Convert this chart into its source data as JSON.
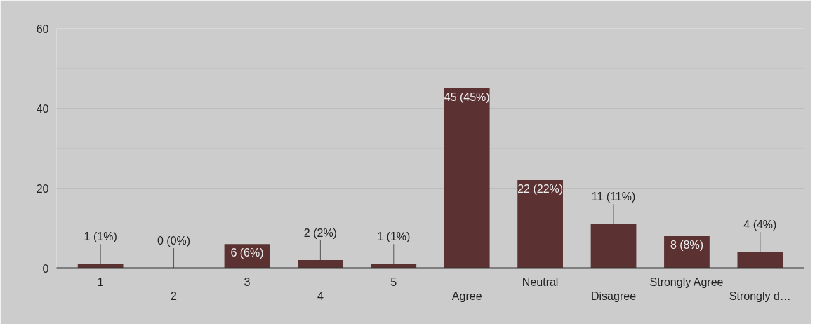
{
  "chart_data": {
    "type": "bar",
    "categories": [
      "1",
      "2",
      "3",
      "4",
      "5",
      "Agree",
      "Neutral",
      "Disagree",
      "Strongly Agree",
      "Strongly d…"
    ],
    "values": [
      1,
      0,
      6,
      2,
      1,
      45,
      22,
      11,
      8,
      4
    ],
    "value_labels": [
      "1 (1%)",
      "0 (0%)",
      "6 (6%)",
      "2 (2%)",
      "1 (1%)",
      "45 (45%)",
      "22 (22%)",
      "11 (11%)",
      "8 (8%)",
      "4 (4%)"
    ],
    "color": "#5c3131",
    "ylim": [
      0,
      60
    ],
    "yticks": [
      0,
      20,
      40,
      60
    ],
    "grid": "y"
  }
}
